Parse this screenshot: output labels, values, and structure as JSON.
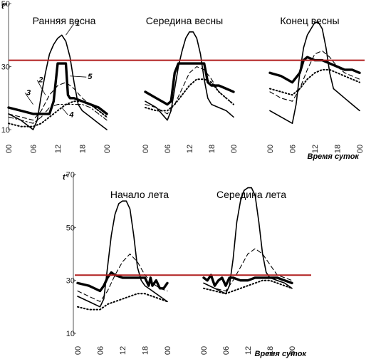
{
  "colors": {
    "threshold_line": "#b01e1e",
    "curves": "#000000"
  },
  "axis": {
    "y_unit": "t°",
    "x_unit": "Время суток"
  },
  "chart_data": [
    {
      "type": "line",
      "title": "Ранняя весна",
      "x_ticks": [
        "00",
        "06",
        "12",
        "18",
        "00"
      ],
      "y_ticks": [
        "10",
        "30",
        "50"
      ],
      "ylim": [
        10,
        50
      ],
      "xlim": [
        0,
        24
      ],
      "threshold": 32,
      "curve_labels": [
        "1",
        "2",
        "3",
        "4",
        "5"
      ],
      "series": [
        {
          "label": "1",
          "style": "solid",
          "x": [
            0,
            3,
            6,
            7,
            8,
            9,
            10,
            11,
            12,
            13,
            14,
            15,
            16,
            17,
            18,
            20,
            22,
            24
          ],
          "y": [
            15,
            13,
            10,
            13,
            21,
            28,
            34,
            37,
            39,
            40,
            38,
            33,
            25,
            18,
            16,
            14,
            12,
            10
          ]
        },
        {
          "label": "2",
          "style": "dashed",
          "x": [
            0,
            3,
            6,
            8,
            10,
            12,
            14,
            16,
            18,
            20,
            22,
            24
          ],
          "y": [
            15,
            14,
            13,
            16,
            21,
            24,
            25,
            23,
            20,
            18,
            16,
            14
          ]
        },
        {
          "label": "3",
          "style": "dashdot",
          "x": [
            0,
            3,
            6,
            8,
            10,
            12,
            14,
            16,
            18,
            20,
            22,
            24
          ],
          "y": [
            14,
            13,
            12,
            14,
            17,
            18,
            18,
            18,
            18,
            17,
            15,
            13
          ]
        },
        {
          "label": "4",
          "style": "dotted",
          "x": [
            0,
            3,
            6,
            8,
            10,
            12,
            14,
            16,
            18,
            20,
            22,
            24
          ],
          "y": [
            12,
            11,
            11,
            12,
            14,
            16,
            18,
            19,
            19,
            18,
            16,
            14
          ]
        },
        {
          "label": "5",
          "style": "thick",
          "x": [
            0,
            3,
            6,
            8,
            10,
            11,
            12,
            13,
            14,
            14.5,
            15,
            16,
            18,
            20,
            22,
            24
          ],
          "y": [
            17,
            16,
            15,
            15,
            15,
            19,
            31,
            31,
            31,
            21,
            20,
            20,
            19,
            18,
            17,
            15
          ]
        }
      ]
    },
    {
      "type": "line",
      "title": "Середина весны",
      "x_ticks": [
        "00",
        "06",
        "12",
        "18",
        "00"
      ],
      "ylim": [
        10,
        50
      ],
      "xlim": [
        0,
        24
      ],
      "threshold": 32,
      "series": [
        {
          "style": "solid",
          "x": [
            0,
            3,
            6,
            7,
            8,
            9,
            10,
            11,
            12,
            13,
            14,
            15,
            16,
            17,
            18,
            20,
            22,
            24
          ],
          "y": [
            19,
            17,
            13,
            16,
            23,
            30,
            35,
            39,
            41,
            41,
            39,
            34,
            26,
            20,
            18,
            17,
            16,
            14
          ]
        },
        {
          "style": "dashed",
          "x": [
            0,
            3,
            6,
            8,
            10,
            12,
            14,
            16,
            18,
            20,
            22,
            24
          ],
          "y": [
            18,
            17,
            15,
            18,
            23,
            28,
            30,
            29,
            26,
            22,
            20,
            18
          ]
        },
        {
          "style": "dotted",
          "x": [
            0,
            3,
            6,
            8,
            10,
            12,
            14,
            16,
            18,
            20,
            22,
            24
          ],
          "y": [
            17,
            16,
            16,
            18,
            21,
            24,
            26,
            26,
            25,
            22,
            20,
            18
          ]
        },
        {
          "style": "thick",
          "x": [
            0,
            3,
            6,
            7,
            8,
            9,
            10,
            12,
            14,
            16,
            17,
            18,
            20,
            22,
            24
          ],
          "y": [
            22,
            20,
            18,
            19,
            28,
            31,
            31,
            31,
            31,
            31,
            25,
            24,
            24,
            23,
            22
          ]
        }
      ]
    },
    {
      "type": "line",
      "title": "Конец весны",
      "x_ticks": [
        "00",
        "06",
        "12",
        "18",
        "00"
      ],
      "ylim": [
        10,
        50
      ],
      "xlim": [
        0,
        24
      ],
      "threshold": 32,
      "series": [
        {
          "style": "solid",
          "x": [
            0,
            3,
            6,
            7,
            8,
            9,
            10,
            11,
            12,
            13,
            14,
            15,
            16,
            17,
            18,
            20,
            22,
            24
          ],
          "y": [
            16,
            14,
            12,
            18,
            28,
            36,
            40,
            42,
            44,
            44,
            42,
            36,
            28,
            23,
            22,
            20,
            18,
            16
          ]
        },
        {
          "style": "dashed",
          "x": [
            0,
            3,
            6,
            8,
            10,
            12,
            14,
            16,
            18,
            20,
            22,
            24
          ],
          "y": [
            22,
            20,
            19,
            23,
            29,
            34,
            35,
            33,
            30,
            28,
            27,
            26
          ]
        },
        {
          "style": "dotted",
          "x": [
            0,
            3,
            6,
            8,
            10,
            12,
            14,
            16,
            18,
            20,
            22,
            24
          ],
          "y": [
            23,
            22,
            21,
            23,
            26,
            28,
            29,
            29,
            28,
            27,
            26,
            25
          ]
        },
        {
          "style": "thick",
          "x": [
            0,
            3,
            6,
            8,
            9,
            10,
            12,
            14,
            16,
            18,
            20,
            22,
            24
          ],
          "y": [
            28,
            27,
            25,
            28,
            32,
            33,
            32,
            32,
            31,
            30,
            29,
            29,
            28
          ]
        }
      ]
    },
    {
      "type": "line",
      "title": "Начало лета",
      "x_ticks": [
        "00",
        "06",
        "12",
        "18",
        "00"
      ],
      "y_ticks": [
        "10",
        "30",
        "50",
        "70"
      ],
      "ylim": [
        10,
        70
      ],
      "xlim": [
        0,
        24
      ],
      "threshold": 32,
      "series": [
        {
          "style": "solid",
          "x": [
            0,
            3,
            6,
            7,
            8,
            9,
            10,
            11,
            12,
            13,
            14,
            15,
            16,
            17,
            18,
            20,
            22,
            24
          ],
          "y": [
            24,
            22,
            20,
            23,
            35,
            47,
            55,
            59,
            60,
            60,
            57,
            47,
            35,
            30,
            28,
            26,
            24,
            22
          ]
        },
        {
          "style": "dashed",
          "x": [
            0,
            3,
            6,
            8,
            10,
            12,
            14,
            16,
            18,
            20,
            22,
            24
          ],
          "y": [
            26,
            24,
            22,
            26,
            32,
            37,
            40,
            37,
            32,
            29,
            27,
            26
          ]
        },
        {
          "style": "dotted",
          "x": [
            0,
            3,
            6,
            8,
            10,
            12,
            14,
            16,
            18,
            20,
            22,
            24
          ],
          "y": [
            20,
            19,
            19,
            21,
            22,
            23,
            24,
            25,
            25,
            24,
            23,
            22
          ]
        },
        {
          "style": "thick",
          "x": [
            0,
            3,
            6,
            7,
            8,
            9,
            10,
            12,
            14,
            16,
            18,
            19,
            19.5,
            20,
            21,
            22,
            23,
            24
          ],
          "y": [
            29,
            28,
            26,
            28,
            31,
            33,
            32,
            31,
            31,
            31,
            31,
            28,
            31,
            28,
            30,
            27,
            27,
            29
          ]
        }
      ]
    },
    {
      "type": "line",
      "title": "Середина лета",
      "x_ticks": [
        "00",
        "06",
        "12",
        "18",
        "00"
      ],
      "ylim": [
        10,
        70
      ],
      "xlim": [
        0,
        24
      ],
      "threshold": 32,
      "series": [
        {
          "style": "solid",
          "x": [
            0,
            3,
            6,
            7,
            8,
            9,
            10,
            11,
            12,
            13,
            14,
            15,
            16,
            17,
            18,
            20,
            22,
            24
          ],
          "y": [
            29,
            27,
            25,
            28,
            38,
            52,
            60,
            64,
            65,
            65,
            62,
            52,
            40,
            33,
            31,
            30,
            29,
            27
          ]
        },
        {
          "style": "dashed",
          "x": [
            0,
            3,
            6,
            8,
            10,
            12,
            14,
            16,
            18,
            20,
            22,
            24
          ],
          "y": [
            29,
            27,
            26,
            30,
            35,
            40,
            42,
            40,
            36,
            32,
            31,
            30
          ]
        },
        {
          "style": "dotted",
          "x": [
            0,
            3,
            6,
            8,
            10,
            12,
            14,
            16,
            18,
            20,
            22,
            24
          ],
          "y": [
            27,
            26,
            25,
            26,
            27,
            28,
            29,
            30,
            30,
            29,
            28,
            27
          ]
        },
        {
          "style": "thick",
          "x": [
            0,
            1,
            2,
            3,
            4,
            5,
            6,
            7,
            8,
            10,
            12,
            14,
            16,
            18,
            20,
            22,
            24
          ],
          "y": [
            31,
            30,
            32,
            28,
            30,
            31,
            28,
            31,
            31,
            30,
            30,
            31,
            31,
            31,
            31,
            30,
            29
          ]
        }
      ]
    }
  ]
}
